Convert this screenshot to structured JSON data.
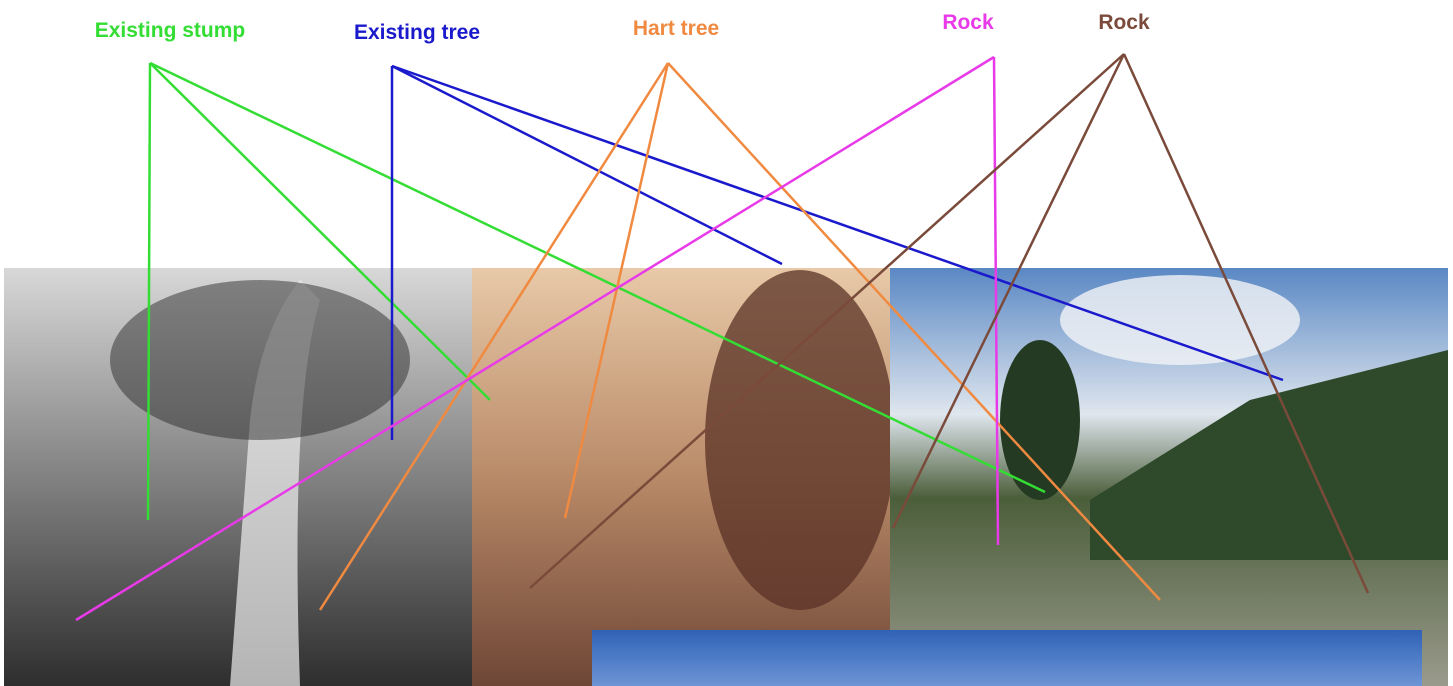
{
  "labels": {
    "stump": "Existing stump",
    "tree": "Existing tree",
    "hart": "Hart tree",
    "rock_magenta": "Rock",
    "rock_brown": "Rock"
  }
}
